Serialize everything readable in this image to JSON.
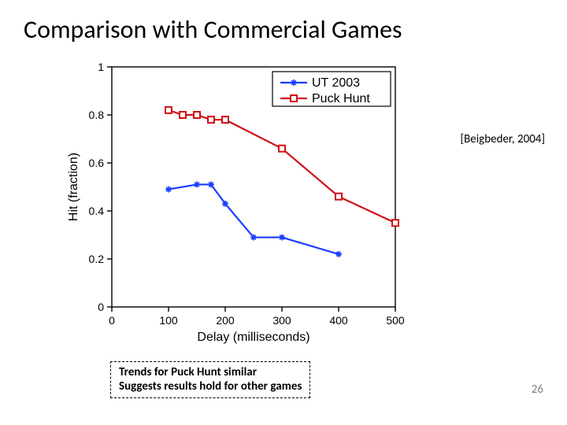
{
  "slide": {
    "title": "Comparison with Commercial Games",
    "citation": "[Beigbeder, 2004]",
    "note_line1": "Trends for Puck Hunt similar",
    "note_line2": "Suggests results hold for other games",
    "page_number": "26"
  },
  "chart": {
    "type": "line",
    "background_color": "#ffffff",
    "axis_color": "#000000",
    "tick_fontsize": 14,
    "tick_color": "#000000",
    "label_fontsize": 16,
    "label_color": "#000000",
    "xlabel": "Delay (milliseconds)",
    "ylabel": "Hit (fraction)",
    "xlim": [
      0,
      500
    ],
    "ylim": [
      0,
      1
    ],
    "xticks": [
      0,
      100,
      200,
      300,
      400,
      500
    ],
    "yticks": [
      0,
      0.2,
      0.4,
      0.6,
      0.8,
      1
    ],
    "line_width": 2.2,
    "marker_size": 8,
    "series": [
      {
        "name": "UT 2003",
        "color": "#1a3cff",
        "marker": "star",
        "x": [
          100,
          150,
          175,
          200,
          250,
          300,
          400
        ],
        "y": [
          0.49,
          0.51,
          0.51,
          0.43,
          0.29,
          0.29,
          0.22
        ]
      },
      {
        "name": "Puck Hunt",
        "color": "#d01018",
        "marker": "hollow-square",
        "x": [
          100,
          125,
          150,
          175,
          200,
          300,
          400,
          500
        ],
        "y": [
          0.82,
          0.8,
          0.8,
          0.78,
          0.78,
          0.66,
          0.46,
          0.35
        ]
      }
    ],
    "legend": {
      "position": "top-right",
      "fontsize": 16,
      "text_color": "#000000",
      "border_color": "#000000",
      "bg_color": "#ffffff"
    }
  }
}
